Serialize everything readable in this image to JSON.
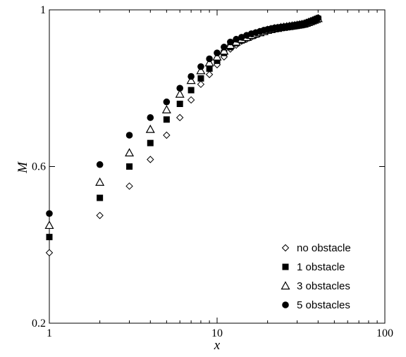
{
  "chart_data": {
    "type": "scatter",
    "xscale": "log",
    "xlim": [
      1,
      100
    ],
    "ylim": [
      0.2,
      1
    ],
    "xlabel": "x",
    "ylabel": "M",
    "xticks": [
      1,
      10,
      100
    ],
    "xtick_labels": [
      "1",
      "10",
      "100"
    ],
    "yticks": [
      0.2,
      0.6,
      1
    ],
    "ytick_labels": [
      "0.2",
      "0.6",
      "1"
    ],
    "grid": false,
    "legend_position": "bottom-right",
    "series": [
      {
        "name": "no obstacle",
        "marker": "diamond-open",
        "x": [
          1,
          2,
          3,
          4,
          5,
          6,
          7,
          8,
          9,
          10,
          11,
          12,
          13,
          14,
          15,
          16,
          17,
          18,
          19,
          20,
          21,
          22,
          23,
          24,
          25,
          26,
          27,
          28,
          29,
          30,
          31,
          32,
          33,
          34,
          35,
          36,
          37,
          38,
          39,
          40
        ],
        "y": [
          0.38,
          0.475,
          0.55,
          0.618,
          0.68,
          0.725,
          0.77,
          0.81,
          0.835,
          0.86,
          0.88,
          0.9,
          0.91,
          0.92,
          0.925,
          0.93,
          0.935,
          0.94,
          0.943,
          0.946,
          0.948,
          0.95,
          0.952,
          0.953,
          0.954,
          0.955,
          0.956,
          0.957,
          0.958,
          0.959,
          0.96,
          0.961,
          0.962,
          0.964,
          0.966,
          0.968,
          0.97,
          0.972,
          0.974,
          0.976
        ]
      },
      {
        "name": "1 obstacle",
        "marker": "square-filled",
        "x": [
          1,
          2,
          3,
          4,
          5,
          6,
          7,
          8,
          9,
          10,
          11,
          12,
          13,
          14,
          15,
          16,
          17,
          18,
          19,
          20,
          21,
          22,
          23,
          24,
          25,
          26,
          27,
          28,
          29,
          30,
          31,
          32,
          33,
          34,
          35,
          36,
          37,
          38,
          39,
          40
        ],
        "y": [
          0.42,
          0.52,
          0.6,
          0.66,
          0.72,
          0.76,
          0.795,
          0.825,
          0.85,
          0.87,
          0.89,
          0.905,
          0.915,
          0.922,
          0.928,
          0.933,
          0.937,
          0.941,
          0.944,
          0.947,
          0.949,
          0.951,
          0.953,
          0.954,
          0.955,
          0.956,
          0.957,
          0.958,
          0.959,
          0.96,
          0.961,
          0.962,
          0.963,
          0.965,
          0.967,
          0.969,
          0.971,
          0.973,
          0.975,
          0.977
        ]
      },
      {
        "name": "3 obstacles",
        "marker": "triangle-open",
        "x": [
          1,
          2,
          3,
          4,
          5,
          6,
          7,
          8,
          9,
          10,
          11,
          12,
          13,
          14,
          15,
          16,
          17,
          18,
          19,
          20,
          21,
          22,
          23,
          24,
          25,
          26,
          27,
          28,
          29,
          30,
          31,
          32,
          33,
          34,
          35,
          36,
          37,
          38,
          39,
          40
        ],
        "y": [
          0.45,
          0.56,
          0.635,
          0.695,
          0.745,
          0.785,
          0.82,
          0.845,
          0.865,
          0.88,
          0.895,
          0.91,
          0.918,
          0.925,
          0.93,
          0.935,
          0.939,
          0.942,
          0.945,
          0.948,
          0.95,
          0.952,
          0.953,
          0.955,
          0.956,
          0.957,
          0.958,
          0.959,
          0.96,
          0.961,
          0.962,
          0.963,
          0.964,
          0.966,
          0.968,
          0.97,
          0.972,
          0.974,
          0.976,
          0.978
        ]
      },
      {
        "name": "5 obstacles",
        "marker": "circle-filled",
        "x": [
          1,
          2,
          3,
          4,
          5,
          6,
          7,
          8,
          9,
          10,
          11,
          12,
          13,
          14,
          15,
          16,
          17,
          18,
          19,
          20,
          21,
          22,
          23,
          24,
          25,
          26,
          27,
          28,
          29,
          30,
          31,
          32,
          33,
          34,
          35,
          36,
          37,
          38,
          39,
          40
        ],
        "y": [
          0.48,
          0.605,
          0.68,
          0.725,
          0.765,
          0.8,
          0.83,
          0.855,
          0.875,
          0.89,
          0.905,
          0.918,
          0.925,
          0.93,
          0.935,
          0.939,
          0.942,
          0.945,
          0.948,
          0.95,
          0.952,
          0.954,
          0.955,
          0.956,
          0.957,
          0.958,
          0.959,
          0.96,
          0.961,
          0.962,
          0.963,
          0.964,
          0.965,
          0.967,
          0.969,
          0.971,
          0.973,
          0.975,
          0.977,
          0.979
        ]
      }
    ]
  }
}
